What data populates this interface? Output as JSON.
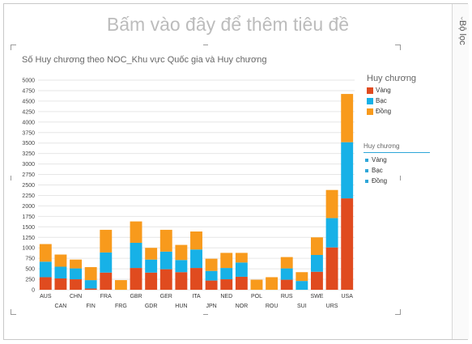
{
  "page": {
    "title": "Bấm vào đây để thêm tiêu đề"
  },
  "filters": {
    "label": "Bộ lọc",
    "arrow": "‹"
  },
  "chart_data": {
    "type": "bar",
    "stacked": true,
    "title": "Số Huy chương theo NOC_Khu vực Quốc gia và Huy chương",
    "categories": [
      "AUS",
      "CAN",
      "CHN",
      "FIN",
      "FRA",
      "FRG",
      "GBR",
      "GDR",
      "GER",
      "HUN",
      "ITA",
      "JPN",
      "NED",
      "NOR",
      "POL",
      "ROU",
      "RUS",
      "SUI",
      "SWE",
      "URS",
      "USA"
    ],
    "series": [
      {
        "name": "Vàng",
        "color": "#e04b1f",
        "values": [
          300,
          270,
          250,
          30,
          410,
          0,
          520,
          410,
          490,
          420,
          520,
          220,
          250,
          310,
          0,
          0,
          240,
          0,
          430,
          1010,
          2180
        ]
      },
      {
        "name": "Bạc",
        "color": "#17b1e7",
        "values": [
          370,
          280,
          260,
          200,
          480,
          0,
          600,
          310,
          420,
          290,
          440,
          230,
          270,
          340,
          0,
          0,
          270,
          210,
          400,
          700,
          1340
        ]
      },
      {
        "name": "Đồng",
        "color": "#f89a1c",
        "values": [
          420,
          290,
          210,
          310,
          540,
          230,
          510,
          280,
          520,
          360,
          430,
          290,
          360,
          230,
          240,
          300,
          270,
          210,
          420,
          670,
          1150
        ]
      }
    ],
    "ylim": [
      0,
      5000
    ],
    "yticks": [
      0,
      250,
      500,
      750,
      1000,
      1250,
      1500,
      1750,
      2000,
      2250,
      2500,
      2750,
      3000,
      3250,
      3500,
      3750,
      4000,
      4250,
      4500,
      4750,
      5000
    ],
    "legend_title": "Huy chương",
    "legend_position": "right"
  },
  "filter_legend": {
    "title": "Huy chương",
    "items": [
      "Vàng",
      "Bạc",
      "Đồng"
    ]
  }
}
